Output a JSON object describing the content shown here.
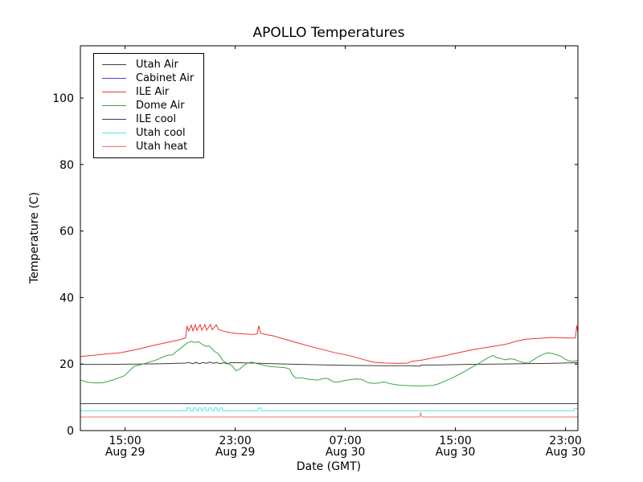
{
  "title": "APOLLO Temperatures",
  "chart_data": {
    "type": "line",
    "title": "APOLLO Temperatures",
    "xlabel": "Date (GMT)",
    "ylabel": "Temperature (C)",
    "x_unit": "hours from Aug 29 ~11:45 GMT",
    "xlim_hours": [
      0,
      36.15
    ],
    "ylim": [
      0,
      115.7
    ],
    "grid": false,
    "legend_position": "upper left",
    "yticks": [
      {
        "v": 0,
        "label": "0"
      },
      {
        "v": 20,
        "label": "20"
      },
      {
        "v": 40,
        "label": "40"
      },
      {
        "v": 60,
        "label": "60"
      },
      {
        "v": 80,
        "label": "80"
      },
      {
        "v": 100,
        "label": "100"
      }
    ],
    "xticks": [
      {
        "t": 3.25,
        "time": "15:00",
        "date": "Aug 29"
      },
      {
        "t": 11.25,
        "time": "23:00",
        "date": "Aug 29"
      },
      {
        "t": 19.25,
        "time": "07:00",
        "date": "Aug 30"
      },
      {
        "t": 27.25,
        "time": "15:00",
        "date": "Aug 30"
      },
      {
        "t": 35.25,
        "time": "23:00",
        "date": "Aug 30"
      }
    ],
    "series": [
      {
        "name": "Utah Air",
        "color": "#3c3c3c",
        "points": [
          [
            0,
            19.9
          ],
          [
            2,
            19.9
          ],
          [
            4,
            20.0
          ],
          [
            6,
            20.1
          ],
          [
            7.6,
            20.3
          ],
          [
            7.9,
            20.5
          ],
          [
            8.15,
            20.1
          ],
          [
            8.4,
            20.5
          ],
          [
            8.65,
            20.1
          ],
          [
            8.9,
            20.5
          ],
          [
            9.15,
            20.2
          ],
          [
            9.4,
            20.6
          ],
          [
            9.65,
            20.2
          ],
          [
            9.9,
            20.5
          ],
          [
            10.15,
            20.1
          ],
          [
            10.4,
            20.4
          ],
          [
            10.65,
            20.1
          ],
          [
            10.9,
            20.4
          ],
          [
            11.5,
            20.4
          ],
          [
            12.5,
            20.3
          ],
          [
            14,
            20.1
          ],
          [
            16,
            19.9
          ],
          [
            18,
            19.7
          ],
          [
            20,
            19.6
          ],
          [
            22,
            19.5
          ],
          [
            24,
            19.5
          ],
          [
            24.68,
            19.4
          ],
          [
            24.75,
            19.7
          ],
          [
            26,
            19.7
          ],
          [
            28,
            19.9
          ],
          [
            30,
            20.0
          ],
          [
            32,
            20.1
          ],
          [
            34,
            20.2
          ],
          [
            36.15,
            20.4
          ]
        ]
      },
      {
        "name": "Cabinet Air",
        "color": "#4646d2",
        "points": [
          [
            0,
            8.1
          ],
          [
            36.15,
            8.1
          ]
        ]
      },
      {
        "name": "ILE Air",
        "color": "#ee3333",
        "points": [
          [
            0,
            22.3
          ],
          [
            0.9,
            22.6
          ],
          [
            1.8,
            23.0
          ],
          [
            2.9,
            23.4
          ],
          [
            4.1,
            24.4
          ],
          [
            5.3,
            25.6
          ],
          [
            6.4,
            26.6
          ],
          [
            7.3,
            27.4
          ],
          [
            7.65,
            27.9
          ],
          [
            7.75,
            31.3
          ],
          [
            7.88,
            30.0
          ],
          [
            8.06,
            31.7
          ],
          [
            8.18,
            30.0
          ],
          [
            8.35,
            31.8
          ],
          [
            8.47,
            30.1
          ],
          [
            8.7,
            31.9
          ],
          [
            8.82,
            30.2
          ],
          [
            9.05,
            31.9
          ],
          [
            9.17,
            30.2
          ],
          [
            9.46,
            31.9
          ],
          [
            9.58,
            30.3
          ],
          [
            9.87,
            31.8
          ],
          [
            10.04,
            30.4
          ],
          [
            10.4,
            29.9
          ],
          [
            10.8,
            29.5
          ],
          [
            11.4,
            29.2
          ],
          [
            12.0,
            29.0
          ],
          [
            12.55,
            28.9
          ],
          [
            12.85,
            29.1
          ],
          [
            12.96,
            31.5
          ],
          [
            13.1,
            29.3
          ],
          [
            13.45,
            28.9
          ],
          [
            14.0,
            28.5
          ],
          [
            15.0,
            27.3
          ],
          [
            16.1,
            26.0
          ],
          [
            17.2,
            24.8
          ],
          [
            18.4,
            23.5
          ],
          [
            19.6,
            22.5
          ],
          [
            20.7,
            21.2
          ],
          [
            21.4,
            20.5
          ],
          [
            22.2,
            20.3
          ],
          [
            23.1,
            20.2
          ],
          [
            23.8,
            20.3
          ],
          [
            24.05,
            20.8
          ],
          [
            24.8,
            21.2
          ],
          [
            25.7,
            21.9
          ],
          [
            26.6,
            22.6
          ],
          [
            27.45,
            23.4
          ],
          [
            28.6,
            24.4
          ],
          [
            29.8,
            25.2
          ],
          [
            30.95,
            26.0
          ],
          [
            31.8,
            27.0
          ],
          [
            32.4,
            27.5
          ],
          [
            33.3,
            27.7
          ],
          [
            34.2,
            28.0
          ],
          [
            35.0,
            27.9
          ],
          [
            35.6,
            27.8
          ],
          [
            35.97,
            27.9
          ],
          [
            36.07,
            31.6
          ],
          [
            36.15,
            29.5
          ]
        ]
      },
      {
        "name": "Dome Air",
        "color": "#3ca348",
        "points": [
          [
            0,
            15.2
          ],
          [
            0.5,
            14.6
          ],
          [
            1.05,
            14.3
          ],
          [
            1.65,
            14.4
          ],
          [
            2.35,
            15.2
          ],
          [
            3.2,
            16.5
          ],
          [
            3.9,
            19.3
          ],
          [
            4.7,
            20.2
          ],
          [
            5.55,
            21.3
          ],
          [
            6.3,
            22.6
          ],
          [
            6.7,
            22.8
          ],
          [
            7.1,
            24.2
          ],
          [
            7.45,
            25.3
          ],
          [
            7.75,
            26.3
          ],
          [
            8.05,
            26.8
          ],
          [
            8.35,
            26.5
          ],
          [
            8.6,
            26.7
          ],
          [
            8.75,
            26.2
          ],
          [
            9.0,
            25.6
          ],
          [
            9.15,
            25.3
          ],
          [
            9.35,
            25.5
          ],
          [
            9.5,
            24.9
          ],
          [
            9.75,
            23.8
          ],
          [
            10.0,
            23.2
          ],
          [
            10.2,
            22.0
          ],
          [
            10.4,
            20.9
          ],
          [
            10.7,
            20.2
          ],
          [
            11.0,
            19.6
          ],
          [
            11.3,
            18.0
          ],
          [
            11.55,
            18.4
          ],
          [
            11.85,
            19.5
          ],
          [
            12.15,
            20.3
          ],
          [
            12.45,
            20.6
          ],
          [
            12.85,
            20.1
          ],
          [
            13.25,
            19.7
          ],
          [
            13.6,
            19.4
          ],
          [
            14.0,
            19.2
          ],
          [
            14.5,
            19.0
          ],
          [
            14.9,
            18.9
          ],
          [
            15.2,
            18.5
          ],
          [
            15.4,
            16.8
          ],
          [
            15.65,
            15.8
          ],
          [
            16.05,
            15.9
          ],
          [
            16.35,
            15.6
          ],
          [
            16.65,
            15.4
          ],
          [
            17.25,
            15.2
          ],
          [
            17.7,
            15.7
          ],
          [
            18.0,
            15.6
          ],
          [
            18.35,
            14.7
          ],
          [
            18.7,
            14.6
          ],
          [
            19.15,
            15.0
          ],
          [
            19.55,
            15.3
          ],
          [
            20.0,
            15.5
          ],
          [
            20.45,
            15.4
          ],
          [
            20.9,
            14.4
          ],
          [
            21.3,
            14.2
          ],
          [
            21.7,
            14.3
          ],
          [
            22.05,
            14.7
          ],
          [
            22.4,
            14.2
          ],
          [
            22.8,
            13.9
          ],
          [
            23.35,
            13.6
          ],
          [
            23.95,
            13.5
          ],
          [
            24.55,
            13.4
          ],
          [
            25.1,
            13.5
          ],
          [
            25.6,
            13.6
          ],
          [
            26.0,
            14.0
          ],
          [
            26.55,
            15.0
          ],
          [
            27.15,
            16.1
          ],
          [
            27.75,
            17.4
          ],
          [
            28.3,
            18.7
          ],
          [
            28.9,
            20.1
          ],
          [
            29.5,
            21.6
          ],
          [
            29.85,
            22.4
          ],
          [
            30.0,
            22.6
          ],
          [
            30.25,
            21.9
          ],
          [
            30.55,
            21.7
          ],
          [
            30.85,
            21.3
          ],
          [
            31.2,
            21.6
          ],
          [
            31.55,
            21.4
          ],
          [
            31.9,
            20.8
          ],
          [
            32.25,
            20.4
          ],
          [
            32.55,
            20.3
          ],
          [
            32.9,
            21.2
          ],
          [
            33.3,
            22.3
          ],
          [
            33.65,
            23.0
          ],
          [
            33.95,
            23.4
          ],
          [
            34.3,
            23.2
          ],
          [
            34.65,
            22.7
          ],
          [
            34.95,
            22.3
          ],
          [
            35.2,
            21.5
          ],
          [
            35.5,
            21.0
          ],
          [
            35.8,
            20.8
          ],
          [
            36.15,
            21.1
          ]
        ]
      },
      {
        "name": "ILE cool",
        "color": "#38386a",
        "points": [
          [
            0,
            8.1
          ],
          [
            36.15,
            8.1
          ]
        ]
      },
      {
        "name": "Utah cool",
        "color": "#4ce4e4",
        "points": [
          [
            0,
            6.0
          ],
          [
            7.72,
            6.0
          ],
          [
            7.76,
            6.8
          ],
          [
            7.95,
            6.8
          ],
          [
            8.0,
            6.0
          ],
          [
            8.2,
            6.0
          ],
          [
            8.24,
            6.8
          ],
          [
            8.4,
            6.8
          ],
          [
            8.45,
            6.0
          ],
          [
            8.55,
            6.0
          ],
          [
            8.6,
            6.8
          ],
          [
            8.75,
            6.8
          ],
          [
            8.8,
            6.0
          ],
          [
            8.9,
            6.0
          ],
          [
            8.95,
            6.8
          ],
          [
            9.1,
            6.8
          ],
          [
            9.15,
            6.0
          ],
          [
            9.3,
            6.0
          ],
          [
            9.35,
            6.8
          ],
          [
            9.5,
            6.8
          ],
          [
            9.55,
            6.0
          ],
          [
            9.7,
            6.0
          ],
          [
            9.75,
            6.8
          ],
          [
            9.9,
            6.8
          ],
          [
            9.95,
            6.0
          ],
          [
            10.1,
            6.0
          ],
          [
            10.15,
            6.8
          ],
          [
            10.3,
            6.8
          ],
          [
            10.35,
            6.0
          ],
          [
            12.9,
            6.0
          ],
          [
            12.95,
            6.8
          ],
          [
            13.1,
            6.8
          ],
          [
            13.15,
            6.0
          ],
          [
            35.85,
            6.0
          ],
          [
            35.9,
            6.6
          ],
          [
            36.15,
            6.6
          ]
        ]
      },
      {
        "name": "Utah heat",
        "color": "#f17070",
        "points": [
          [
            0,
            4.1
          ],
          [
            24.65,
            4.1
          ],
          [
            24.72,
            5.3
          ],
          [
            24.8,
            4.2
          ],
          [
            24.9,
            4.1
          ],
          [
            36.15,
            4.1
          ]
        ]
      }
    ]
  }
}
